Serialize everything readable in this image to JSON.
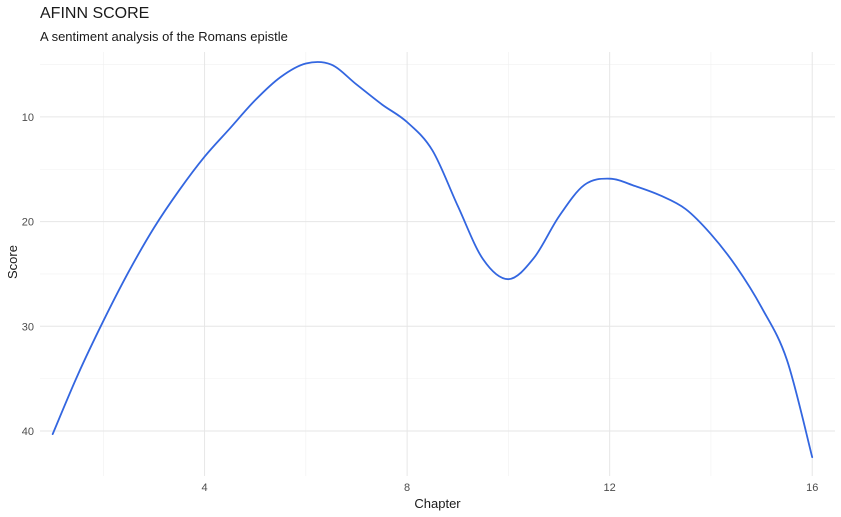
{
  "chart_data": {
    "type": "line",
    "title": "AFINN SCORE",
    "subtitle": "A sentiment analysis of the Romans epistle",
    "xlabel": "Chapter",
    "ylabel": "Score",
    "xlim": [
      0.75,
      16.45
    ],
    "ylim": [
      44.3,
      3.8
    ],
    "y_reversed": true,
    "grid": true,
    "x_ticks": [
      4,
      8,
      12,
      16
    ],
    "x_minor_ticks": [
      2,
      6,
      10,
      14
    ],
    "y_ticks": [
      10,
      20,
      30,
      40
    ],
    "y_minor_ticks": [
      5,
      15,
      25,
      35
    ],
    "series": [
      {
        "color": "#3366e0",
        "x": [
          1,
          1.5,
          2,
          2.5,
          3,
          3.5,
          4,
          4.5,
          5,
          5.5,
          6,
          6.5,
          7,
          7.5,
          8,
          8.5,
          9,
          9.5,
          10,
          10.5,
          11,
          11.5,
          12,
          12.5,
          13,
          13.5,
          14,
          14.5,
          15,
          15.5,
          16
        ],
        "y": [
          40.3,
          34.6,
          29.5,
          24.8,
          20.6,
          17.0,
          13.8,
          11.1,
          8.4,
          6.2,
          4.9,
          5.0,
          6.9,
          8.8,
          10.5,
          13.2,
          18.5,
          23.6,
          25.5,
          23.5,
          19.5,
          16.5,
          15.9,
          16.6,
          17.5,
          18.8,
          21.2,
          24.3,
          28.2,
          33.2,
          42.5
        ]
      }
    ]
  }
}
